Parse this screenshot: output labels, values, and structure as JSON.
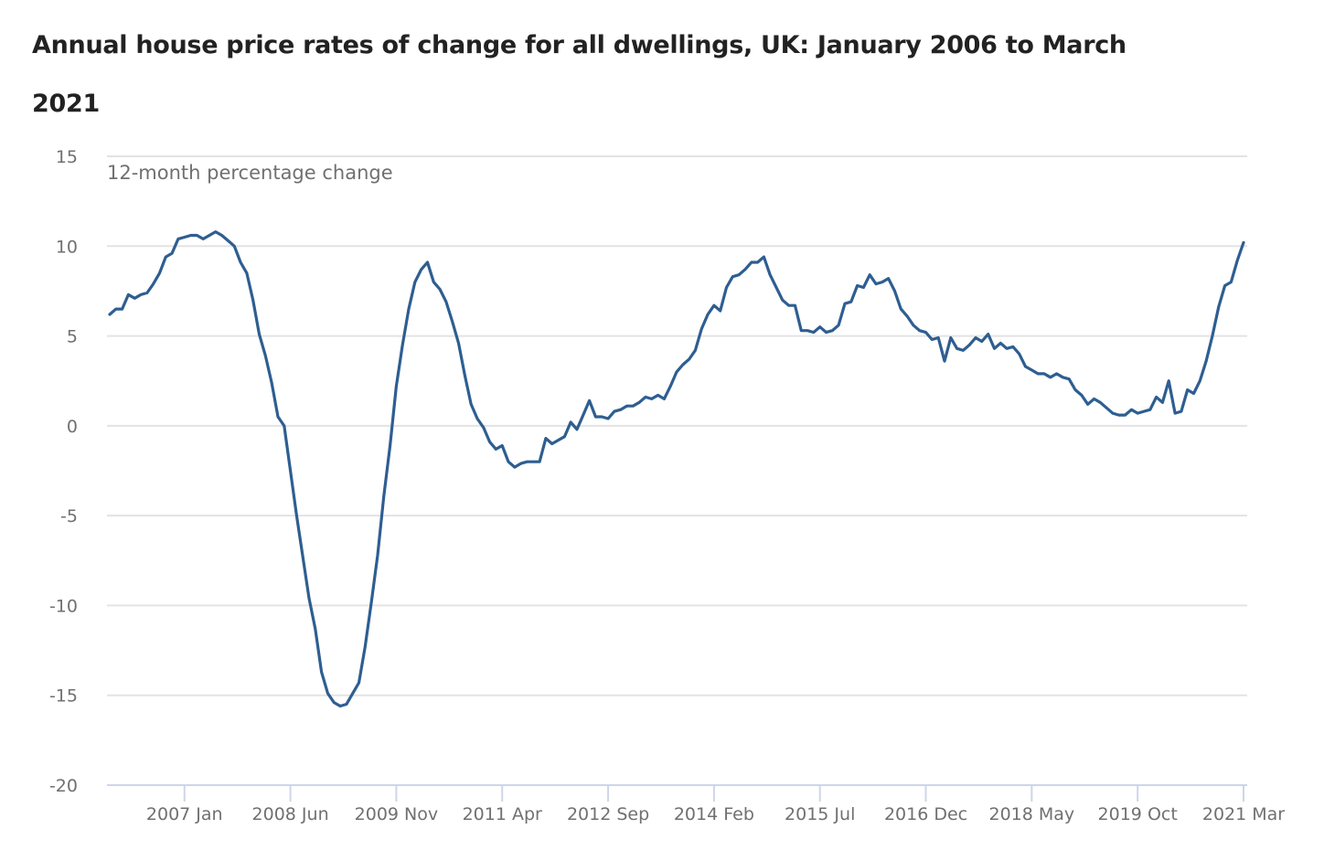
{
  "chart_data": {
    "type": "line",
    "title": "Annual house price rates of change for all dwellings, UK: January 2006 to March 2021",
    "ylabel": "12-month percentage change",
    "xlabel": "",
    "ylim": [
      -20,
      15
    ],
    "yticks": [
      15,
      10,
      5,
      0,
      -5,
      -10,
      -15,
      -20
    ],
    "ytick_labels": [
      "15",
      "10",
      "5",
      "0",
      "-5",
      "-10",
      "-15",
      "-20"
    ],
    "x_start": "2006 Jan",
    "x_end": "2021 Mar",
    "xticks": [
      {
        "label": "2007 Jan",
        "month_index": 12
      },
      {
        "label": "2008 Jun",
        "month_index": 29
      },
      {
        "label": "2009 Nov",
        "month_index": 46
      },
      {
        "label": "2011 Apr",
        "month_index": 63
      },
      {
        "label": "2012 Sep",
        "month_index": 80
      },
      {
        "label": "2014 Feb",
        "month_index": 97
      },
      {
        "label": "2015 Jul",
        "month_index": 114
      },
      {
        "label": "2016 Dec",
        "month_index": 131
      },
      {
        "label": "2018 May",
        "month_index": 148
      },
      {
        "label": "2019 Oct",
        "month_index": 165
      },
      {
        "label": "2021 Mar",
        "month_index": 182
      }
    ],
    "grid": true,
    "legend": "none",
    "series": [
      {
        "name": "UK all dwellings",
        "color": "#2e5e91",
        "values": [
          6.2,
          6.5,
          6.5,
          7.3,
          7.1,
          7.3,
          7.4,
          7.9,
          8.5,
          9.4,
          9.6,
          10.4,
          10.5,
          10.6,
          10.6,
          10.4,
          10.6,
          10.8,
          10.6,
          10.3,
          10.0,
          9.1,
          8.5,
          7.0,
          5.1,
          3.9,
          2.4,
          0.5,
          0.0,
          -2.5,
          -5.0,
          -7.3,
          -9.6,
          -11.3,
          -13.7,
          -14.9,
          -15.4,
          -15.6,
          -15.5,
          -14.9,
          -14.3,
          -12.3,
          -9.8,
          -7.2,
          -3.9,
          -1.1,
          2.2,
          4.5,
          6.5,
          8.0,
          8.7,
          9.1,
          8.0,
          7.6,
          6.9,
          5.8,
          4.6,
          2.8,
          1.2,
          0.4,
          -0.1,
          -0.9,
          -1.3,
          -1.1,
          -2.0,
          -2.3,
          -2.1,
          -2.0,
          -2.0,
          -2.0,
          -0.7,
          -1.0,
          -0.8,
          -0.6,
          0.2,
          -0.2,
          0.6,
          1.4,
          0.5,
          0.5,
          0.4,
          0.8,
          0.9,
          1.1,
          1.1,
          1.3,
          1.6,
          1.5,
          1.7,
          1.5,
          2.2,
          3.0,
          3.4,
          3.7,
          4.2,
          5.4,
          6.2,
          6.7,
          6.4,
          7.7,
          8.3,
          8.4,
          8.7,
          9.1,
          9.1,
          9.4,
          8.4,
          7.7,
          7.0,
          6.7,
          6.7,
          5.3,
          5.3,
          5.2,
          5.5,
          5.2,
          5.3,
          5.6,
          6.8,
          6.9,
          7.8,
          7.7,
          8.4,
          7.9,
          8.0,
          8.2,
          7.5,
          6.5,
          6.1,
          5.6,
          5.3,
          5.2,
          4.8,
          4.9,
          3.6,
          4.9,
          4.3,
          4.2,
          4.5,
          4.9,
          4.7,
          5.1,
          4.3,
          4.6,
          4.3,
          4.4,
          4.0,
          3.3,
          3.1,
          2.9,
          2.9,
          2.7,
          2.9,
          2.7,
          2.6,
          2.0,
          1.7,
          1.2,
          1.5,
          1.3,
          1.0,
          0.7,
          0.6,
          0.6,
          0.9,
          0.7,
          0.8,
          0.9,
          1.6,
          1.3,
          2.5,
          0.7,
          0.8,
          2.0,
          1.8,
          2.5,
          3.6,
          5.0,
          6.6,
          7.8,
          8.0,
          9.2,
          10.2
        ]
      }
    ]
  }
}
